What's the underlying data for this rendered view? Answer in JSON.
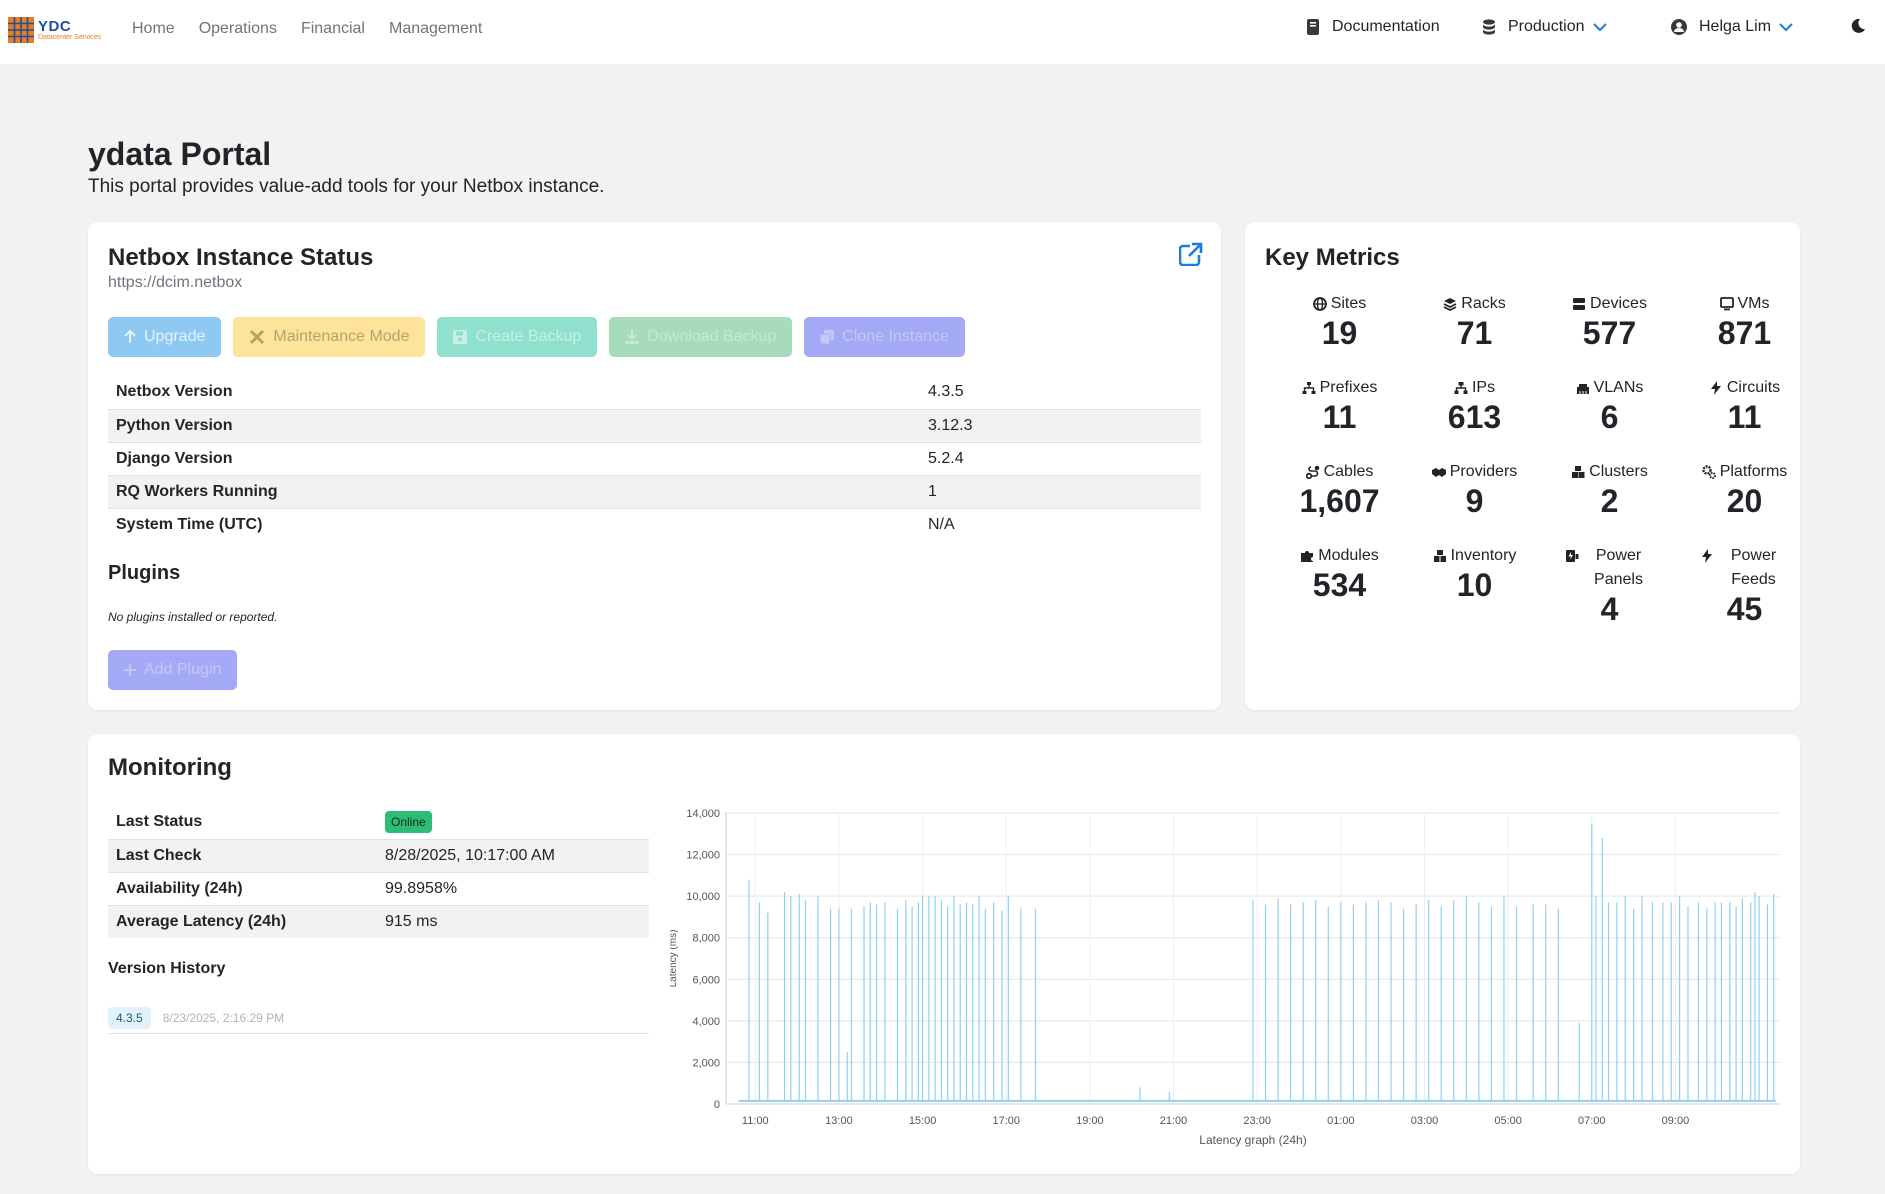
{
  "nav": {
    "brand_title": "YDC",
    "brand_sub": "Datacenter Services",
    "links": [
      "Home",
      "Operations",
      "Financial",
      "Management"
    ],
    "documentation": "Documentation",
    "environment": "Production",
    "user": "Helga Lim"
  },
  "hero": {
    "title": "ydata Portal",
    "subtitle": "This portal provides value-add tools for your Netbox instance."
  },
  "netbox": {
    "title": "Netbox Instance Status",
    "url": "https://dcim.netbox",
    "buttons": {
      "upgrade": "Upgrade",
      "maintenance": "Maintenance Mode",
      "create_backup": "Create Backup",
      "download_backup": "Download Backup",
      "clone": "Clone Instance"
    },
    "info": [
      {
        "k": "Netbox Version",
        "v": "4.3.5"
      },
      {
        "k": "Python Version",
        "v": "3.12.3"
      },
      {
        "k": "Django Version",
        "v": "5.2.4"
      },
      {
        "k": "RQ Workers Running",
        "v": "1"
      },
      {
        "k": "System Time (UTC)",
        "v": "N/A"
      }
    ],
    "plugins_title": "Plugins",
    "plugins_empty": "No plugins installed or reported.",
    "add_plugin": "Add Plugin"
  },
  "metrics": {
    "title": "Key Metrics",
    "items": [
      {
        "label": "Sites",
        "value": "19",
        "icon": "globe-icon"
      },
      {
        "label": "Racks",
        "value": "71",
        "icon": "layers-icon"
      },
      {
        "label": "Devices",
        "value": "577",
        "icon": "server-icon"
      },
      {
        "label": "VMs",
        "value": "871",
        "icon": "monitor-icon"
      },
      {
        "label": "Prefixes",
        "value": "11",
        "icon": "sitemap-icon"
      },
      {
        "label": "IPs",
        "value": "613",
        "icon": "network-icon"
      },
      {
        "label": "VLANs",
        "value": "6",
        "icon": "ethernet-icon"
      },
      {
        "label": "Circuits",
        "value": "11",
        "icon": "bolt-icon"
      },
      {
        "label": "Cables",
        "value": "1,607",
        "icon": "cable-icon"
      },
      {
        "label": "Providers",
        "value": "9",
        "icon": "handshake-icon"
      },
      {
        "label": "Clusters",
        "value": "2",
        "icon": "cubes-icon"
      },
      {
        "label": "Platforms",
        "value": "20",
        "icon": "gears-icon"
      },
      {
        "label": "Modules",
        "value": "534",
        "icon": "puzzle-icon"
      },
      {
        "label": "Inventory",
        "value": "10",
        "icon": "boxes-icon"
      },
      {
        "label": "Power Panels",
        "value": "4",
        "icon": "power-panel-icon"
      },
      {
        "label": "Power Feeds",
        "value": "45",
        "icon": "power-feed-icon"
      }
    ]
  },
  "monitoring": {
    "title": "Monitoring",
    "rows": [
      {
        "k": "Last Status",
        "v": "Online"
      },
      {
        "k": "Last Check",
        "v": "8/28/2025, 10:17:00 AM"
      },
      {
        "k": "Availability (24h)",
        "v": "99.8958%"
      },
      {
        "k": "Average Latency (24h)",
        "v": "915 ms"
      }
    ],
    "version_history_title": "Version History",
    "version": "4.3.5",
    "version_date": "8/23/2025, 2:16:29 PM"
  },
  "colors": {
    "accent": "#1e7be0",
    "online": "#2ebd77",
    "chart_line": "#8fd0f0"
  },
  "chart_data": {
    "type": "line",
    "title": "",
    "xlabel": "Latency graph (24h)",
    "ylabel": "Latency (ms)",
    "ylim": [
      0,
      14000
    ],
    "yticks": [
      0,
      2000,
      4000,
      6000,
      8000,
      10000,
      12000,
      14000
    ],
    "ytick_labels": [
      "0",
      "2,000",
      "4,000",
      "6,000",
      "8,000",
      "10,000",
      "12,000",
      "14,000"
    ],
    "xticks": [
      "11:00",
      "13:00",
      "15:00",
      "17:00",
      "19:00",
      "21:00",
      "23:00",
      "01:00",
      "03:00",
      "05:00",
      "07:00",
      "09:00"
    ],
    "x_range_hours": [
      10.3,
      35.5
    ],
    "grid": true,
    "baseline_ms": 150,
    "spikes": [
      {
        "t": 10.85,
        "v": 10800
      },
      {
        "t": 11.1,
        "v": 9700
      },
      {
        "t": 11.3,
        "v": 9200
      },
      {
        "t": 11.7,
        "v": 10200
      },
      {
        "t": 11.85,
        "v": 10000
      },
      {
        "t": 12.05,
        "v": 10100
      },
      {
        "t": 12.2,
        "v": 9800
      },
      {
        "t": 12.5,
        "v": 10000
      },
      {
        "t": 12.8,
        "v": 9400
      },
      {
        "t": 13.0,
        "v": 9400
      },
      {
        "t": 13.2,
        "v": 2500
      },
      {
        "t": 13.3,
        "v": 9400
      },
      {
        "t": 13.6,
        "v": 9500
      },
      {
        "t": 13.75,
        "v": 9700
      },
      {
        "t": 13.9,
        "v": 9600
      },
      {
        "t": 14.1,
        "v": 9700
      },
      {
        "t": 14.4,
        "v": 9400
      },
      {
        "t": 14.6,
        "v": 9800
      },
      {
        "t": 14.75,
        "v": 9500
      },
      {
        "t": 14.9,
        "v": 9700
      },
      {
        "t": 15.0,
        "v": 10000
      },
      {
        "t": 15.15,
        "v": 10000
      },
      {
        "t": 15.3,
        "v": 10000
      },
      {
        "t": 15.45,
        "v": 9800
      },
      {
        "t": 15.6,
        "v": 9500
      },
      {
        "t": 15.75,
        "v": 10000
      },
      {
        "t": 15.9,
        "v": 9600
      },
      {
        "t": 16.05,
        "v": 9700
      },
      {
        "t": 16.2,
        "v": 9600
      },
      {
        "t": 16.35,
        "v": 10000
      },
      {
        "t": 16.5,
        "v": 9400
      },
      {
        "t": 16.7,
        "v": 9700
      },
      {
        "t": 16.9,
        "v": 9300
      },
      {
        "t": 17.05,
        "v": 10000
      },
      {
        "t": 17.35,
        "v": 9400
      },
      {
        "t": 17.7,
        "v": 9400
      },
      {
        "t": 20.2,
        "v": 800
      },
      {
        "t": 20.9,
        "v": 600
      },
      {
        "t": 30.7,
        "v": 3900
      },
      {
        "t": 31.0,
        "v": 13500
      },
      {
        "t": 31.25,
        "v": 12800
      },
      {
        "t": 31.1,
        "v": 10000
      },
      {
        "t": 31.4,
        "v": 9700
      },
      {
        "t": 31.6,
        "v": 9700
      },
      {
        "t": 31.8,
        "v": 10000
      },
      {
        "t": 32.0,
        "v": 9400
      },
      {
        "t": 32.2,
        "v": 10000
      },
      {
        "t": 32.45,
        "v": 9700
      },
      {
        "t": 32.7,
        "v": 9700
      },
      {
        "t": 32.9,
        "v": 9700
      },
      {
        "t": 33.1,
        "v": 10000
      },
      {
        "t": 33.3,
        "v": 9500
      },
      {
        "t": 33.55,
        "v": 9700
      },
      {
        "t": 33.75,
        "v": 9400
      },
      {
        "t": 33.95,
        "v": 9700
      },
      {
        "t": 34.1,
        "v": 9700
      },
      {
        "t": 34.3,
        "v": 9700
      },
      {
        "t": 34.45,
        "v": 9500
      },
      {
        "t": 34.6,
        "v": 9900
      },
      {
        "t": 34.8,
        "v": 9700
      },
      {
        "t": 35.0,
        "v": 10000
      },
      {
        "t": 35.2,
        "v": 9600
      },
      {
        "t": 34.9,
        "v": 10200
      },
      {
        "t": 35.35,
        "v": 10100
      },
      {
        "t": 29.6,
        "v": 9600
      },
      {
        "t": 29.9,
        "v": 9600
      },
      {
        "t": 30.2,
        "v": 9400
      },
      {
        "t": 26.2,
        "v": 9700
      },
      {
        "t": 26.5,
        "v": 9400
      },
      {
        "t": 26.8,
        "v": 9600
      },
      {
        "t": 27.1,
        "v": 9800
      },
      {
        "t": 27.4,
        "v": 9500
      },
      {
        "t": 27.7,
        "v": 9800
      },
      {
        "t": 28.0,
        "v": 10000
      },
      {
        "t": 28.3,
        "v": 9700
      },
      {
        "t": 28.6,
        "v": 9500
      },
      {
        "t": 28.9,
        "v": 10000
      },
      {
        "t": 29.2,
        "v": 9500
      },
      {
        "t": 25.9,
        "v": 9800
      },
      {
        "t": 25.6,
        "v": 9700
      },
      {
        "t": 25.3,
        "v": 9600
      },
      {
        "t": 25.0,
        "v": 9700
      },
      {
        "t": 24.7,
        "v": 9500
      },
      {
        "t": 24.4,
        "v": 9800
      },
      {
        "t": 24.1,
        "v": 9700
      },
      {
        "t": 23.8,
        "v": 9600
      },
      {
        "t": 23.5,
        "v": 9900
      },
      {
        "t": 23.2,
        "v": 9600
      },
      {
        "t": 22.9,
        "v": 9800
      }
    ]
  }
}
